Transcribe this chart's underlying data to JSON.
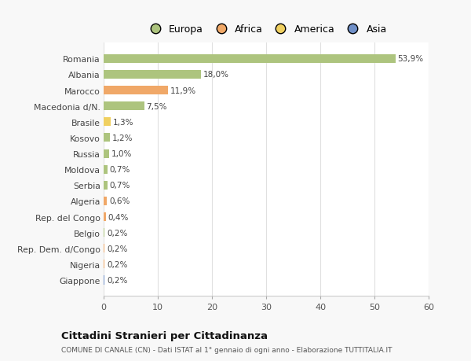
{
  "categories": [
    "Romania",
    "Albania",
    "Marocco",
    "Macedonia d/N.",
    "Brasile",
    "Kosovo",
    "Russia",
    "Moldova",
    "Serbia",
    "Algeria",
    "Rep. del Congo",
    "Belgio",
    "Rep. Dem. d/Congo",
    "Nigeria",
    "Giappone"
  ],
  "values": [
    53.9,
    18.0,
    11.9,
    7.5,
    1.3,
    1.2,
    1.0,
    0.7,
    0.7,
    0.6,
    0.4,
    0.2,
    0.2,
    0.2,
    0.2
  ],
  "labels": [
    "53,9%",
    "18,0%",
    "11,9%",
    "7,5%",
    "1,3%",
    "1,2%",
    "1,0%",
    "0,7%",
    "0,7%",
    "0,6%",
    "0,4%",
    "0,2%",
    "0,2%",
    "0,2%",
    "0,2%"
  ],
  "continents": [
    "Europa",
    "Europa",
    "Africa",
    "Europa",
    "America",
    "Europa",
    "Europa",
    "Europa",
    "Europa",
    "Africa",
    "Africa",
    "Europa",
    "Africa",
    "Africa",
    "Asia"
  ],
  "continent_colors": {
    "Europa": "#adc47e",
    "Africa": "#f0a868",
    "America": "#f0d060",
    "Asia": "#7090c8"
  },
  "legend_items": [
    "Europa",
    "Africa",
    "America",
    "Asia"
  ],
  "legend_colors": [
    "#adc47e",
    "#f0a868",
    "#f0d060",
    "#7090c8"
  ],
  "title": "Cittadini Stranieri per Cittadinanza",
  "subtitle": "COMUNE DI CANALE (CN) - Dati ISTAT al 1° gennaio di ogni anno - Elaborazione TUTTITALIA.IT",
  "xlim": [
    0,
    60
  ],
  "xticks": [
    0,
    10,
    20,
    30,
    40,
    50,
    60
  ],
  "background_color": "#f8f8f8",
  "plot_background_color": "#ffffff",
  "grid_color": "#e0e0e0",
  "bar_height": 0.55
}
